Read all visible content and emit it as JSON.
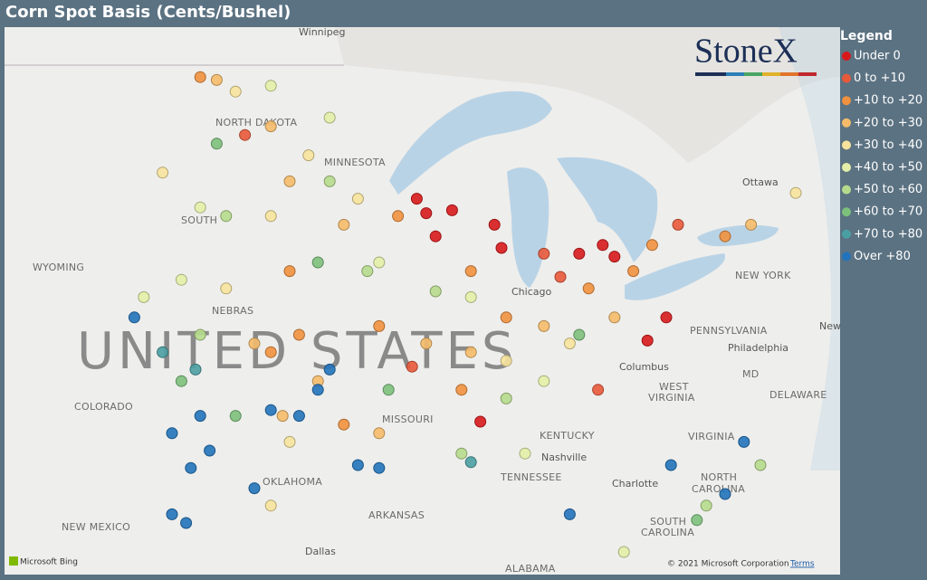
{
  "header": {
    "title": "Corn Spot Basis (Cents/Bushel)"
  },
  "logo": "StoneX",
  "legend": {
    "title": "Legend",
    "items": [
      {
        "label": "Under 0",
        "color": "#d7191c"
      },
      {
        "label": "0 to +10",
        "color": "#e8593a"
      },
      {
        "label": "+10 to +20",
        "color": "#f0913f"
      },
      {
        "label": "+20 to +30",
        "color": "#f5bb6a"
      },
      {
        "label": "+30 to +40",
        "color": "#f6e39c"
      },
      {
        "label": "+40 to +50",
        "color": "#e3efa8"
      },
      {
        "label": "+50 to +60",
        "color": "#b6da8c"
      },
      {
        "label": "+60 to +70",
        "color": "#7cc07c"
      },
      {
        "label": "+70 to +80",
        "color": "#4a9fa3"
      },
      {
        "label": "Over +80",
        "color": "#2273bb"
      }
    ]
  },
  "map": {
    "labels": [
      "Winnipeg",
      "NORTH DAKOTA",
      "MINNESOTA",
      "SOUTH",
      "WYOMING",
      "NEBRAS",
      "COLORADO",
      "MISSOURI",
      "OKLAHOMA",
      "NEW MEXICO",
      "ARKANSAS",
      "TENNESSEE",
      "KENTUCKY",
      "WEST",
      "VIRGINIA",
      "VIRGINIA",
      "NORTH",
      "CAROLINA",
      "SOUTH",
      "CAROLINA",
      "PENNSYLVANIA",
      "NEW YORK",
      "Ottawa",
      "Chicago",
      "Columbus",
      "Philadelphia",
      "Nashville",
      "Charlotte",
      "Dallas",
      "ALABAMA",
      "MD",
      "DELAWARE",
      "New",
      "UNITED STATES"
    ],
    "points": [
      {
        "lon": -92.2,
        "lat": 45.1,
        "category": 0
      },
      {
        "lon": -91.8,
        "lat": 44.6,
        "category": 0
      },
      {
        "lon": -90.7,
        "lat": 44.7,
        "category": 0
      },
      {
        "lon": -91.4,
        "lat": 43.8,
        "category": 0
      },
      {
        "lon": -88.9,
        "lat": 44.2,
        "category": 0
      },
      {
        "lon": -88.6,
        "lat": 43.4,
        "category": 0
      },
      {
        "lon": -84.3,
        "lat": 43.5,
        "category": 0
      },
      {
        "lon": -83.8,
        "lat": 43.1,
        "category": 0
      },
      {
        "lon": -85.3,
        "lat": 43.2,
        "category": 0
      },
      {
        "lon": -81.6,
        "lat": 41.0,
        "category": 0
      },
      {
        "lon": -82.4,
        "lat": 40.2,
        "category": 0
      },
      {
        "lon": -89.5,
        "lat": 37.4,
        "category": 0
      },
      {
        "lon": -84.5,
        "lat": 38.5,
        "category": 1
      },
      {
        "lon": -86.1,
        "lat": 42.4,
        "category": 1
      },
      {
        "lon": -86.8,
        "lat": 43.2,
        "category": 1
      },
      {
        "lon": -81.1,
        "lat": 44.2,
        "category": 1
      },
      {
        "lon": -92.4,
        "lat": 39.3,
        "category": 1
      },
      {
        "lon": -99.5,
        "lat": 47.3,
        "category": 1
      },
      {
        "lon": -101.4,
        "lat": 49.3,
        "category": 2
      },
      {
        "lon": -97.6,
        "lat": 42.6,
        "category": 2
      },
      {
        "lon": -98.4,
        "lat": 39.8,
        "category": 2
      },
      {
        "lon": -97.2,
        "lat": 40.4,
        "category": 2
      },
      {
        "lon": -93.0,
        "lat": 44.5,
        "category": 2
      },
      {
        "lon": -89.9,
        "lat": 42.6,
        "category": 2
      },
      {
        "lon": -84.9,
        "lat": 42.0,
        "category": 2
      },
      {
        "lon": -83.0,
        "lat": 42.6,
        "category": 2
      },
      {
        "lon": -82.2,
        "lat": 43.5,
        "category": 2
      },
      {
        "lon": -79.1,
        "lat": 43.8,
        "category": 2
      },
      {
        "lon": -90.3,
        "lat": 38.5,
        "category": 2
      },
      {
        "lon": -95.3,
        "lat": 37.3,
        "category": 2
      },
      {
        "lon": -93.8,
        "lat": 40.7,
        "category": 2
      },
      {
        "lon": -88.4,
        "lat": 41.0,
        "category": 2
      },
      {
        "lon": -100.7,
        "lat": 49.2,
        "category": 3
      },
      {
        "lon": -98.4,
        "lat": 47.6,
        "category": 3
      },
      {
        "lon": -97.6,
        "lat": 45.7,
        "category": 3
      },
      {
        "lon": -95.3,
        "lat": 44.2,
        "category": 3
      },
      {
        "lon": -99.1,
        "lat": 40.1,
        "category": 3
      },
      {
        "lon": -97.9,
        "lat": 37.6,
        "category": 3
      },
      {
        "lon": -96.4,
        "lat": 38.8,
        "category": 3
      },
      {
        "lon": -91.8,
        "lat": 40.1,
        "category": 3
      },
      {
        "lon": -89.9,
        "lat": 39.8,
        "category": 3
      },
      {
        "lon": -86.8,
        "lat": 40.7,
        "category": 3
      },
      {
        "lon": -83.8,
        "lat": 41.0,
        "category": 3
      },
      {
        "lon": -78.0,
        "lat": 44.2,
        "category": 3
      },
      {
        "lon": -93.8,
        "lat": 37.0,
        "category": 3
      },
      {
        "lon": -99.9,
        "lat": 48.8,
        "category": 4
      },
      {
        "lon": -96.8,
        "lat": 46.6,
        "category": 4
      },
      {
        "lon": -98.4,
        "lat": 44.5,
        "category": 4
      },
      {
        "lon": -94.7,
        "lat": 45.1,
        "category": 4
      },
      {
        "lon": -100.3,
        "lat": 42.0,
        "category": 4
      },
      {
        "lon": -97.6,
        "lat": 36.7,
        "category": 4
      },
      {
        "lon": -98.4,
        "lat": 34.5,
        "category": 4
      },
      {
        "lon": -88.4,
        "lat": 39.5,
        "category": 4
      },
      {
        "lon": -85.7,
        "lat": 40.1,
        "category": 4
      },
      {
        "lon": -76.1,
        "lat": 45.3,
        "category": 4
      },
      {
        "lon": -103.0,
        "lat": 46.0,
        "category": 4
      },
      {
        "lon": -98.4,
        "lat": 49.0,
        "category": 5
      },
      {
        "lon": -95.9,
        "lat": 47.9,
        "category": 5
      },
      {
        "lon": -101.4,
        "lat": 44.8,
        "category": 5
      },
      {
        "lon": -102.2,
        "lat": 42.3,
        "category": 5
      },
      {
        "lon": -93.8,
        "lat": 42.9,
        "category": 5
      },
      {
        "lon": -89.9,
        "lat": 41.7,
        "category": 5
      },
      {
        "lon": -86.8,
        "lat": 38.8,
        "category": 5
      },
      {
        "lon": -87.6,
        "lat": 36.3,
        "category": 5
      },
      {
        "lon": -83.4,
        "lat": 32.9,
        "category": 5
      },
      {
        "lon": -103.8,
        "lat": 41.7,
        "category": 5
      },
      {
        "lon": -95.9,
        "lat": 45.7,
        "category": 6
      },
      {
        "lon": -94.3,
        "lat": 42.6,
        "category": 6
      },
      {
        "lon": -91.4,
        "lat": 41.9,
        "category": 6
      },
      {
        "lon": -101.4,
        "lat": 40.4,
        "category": 6
      },
      {
        "lon": -90.3,
        "lat": 36.3,
        "category": 6
      },
      {
        "lon": -79.9,
        "lat": 34.5,
        "category": 6
      },
      {
        "lon": -77.6,
        "lat": 35.9,
        "category": 6
      },
      {
        "lon": -100.3,
        "lat": 44.5,
        "category": 6
      },
      {
        "lon": -88.4,
        "lat": 38.2,
        "category": 6
      },
      {
        "lon": -96.4,
        "lat": 42.9,
        "category": 7
      },
      {
        "lon": -102.2,
        "lat": 38.8,
        "category": 7
      },
      {
        "lon": -99.9,
        "lat": 37.6,
        "category": 7
      },
      {
        "lon": -93.4,
        "lat": 38.5,
        "category": 7
      },
      {
        "lon": -100.7,
        "lat": 47.0,
        "category": 7
      },
      {
        "lon": -85.3,
        "lat": 40.4,
        "category": 7
      },
      {
        "lon": -80.3,
        "lat": 34.0,
        "category": 7
      },
      {
        "lon": -103.0,
        "lat": 39.8,
        "category": 8
      },
      {
        "lon": -101.6,
        "lat": 39.2,
        "category": 8
      },
      {
        "lon": -89.9,
        "lat": 36.0,
        "category": 8
      },
      {
        "lon": -104.2,
        "lat": 41.0,
        "category": 9
      },
      {
        "lon": -102.6,
        "lat": 37.0,
        "category": 9
      },
      {
        "lon": -101.0,
        "lat": 36.4,
        "category": 9
      },
      {
        "lon": -101.8,
        "lat": 35.8,
        "category": 9
      },
      {
        "lon": -98.4,
        "lat": 37.8,
        "category": 9
      },
      {
        "lon": -95.9,
        "lat": 39.2,
        "category": 9
      },
      {
        "lon": -94.7,
        "lat": 35.9,
        "category": 9
      },
      {
        "lon": -93.8,
        "lat": 35.8,
        "category": 9
      },
      {
        "lon": -102.6,
        "lat": 34.2,
        "category": 9
      },
      {
        "lon": -102.0,
        "lat": 33.9,
        "category": 9
      },
      {
        "lon": -99.1,
        "lat": 35.1,
        "category": 9
      },
      {
        "lon": -81.4,
        "lat": 35.9,
        "category": 9
      },
      {
        "lon": -79.1,
        "lat": 34.9,
        "category": 9
      },
      {
        "lon": -78.3,
        "lat": 36.7,
        "category": 9
      },
      {
        "lon": -85.7,
        "lat": 34.2,
        "category": 9
      },
      {
        "lon": -96.4,
        "lat": 38.5,
        "category": 9
      },
      {
        "lon": -97.2,
        "lat": 37.6,
        "category": 9
      },
      {
        "lon": -101.4,
        "lat": 37.6,
        "category": 9
      }
    ]
  },
  "footer": {
    "attribution": "Microsoft Bing",
    "copyright": "© 2021 Microsoft Corporation",
    "terms": "Terms"
  }
}
